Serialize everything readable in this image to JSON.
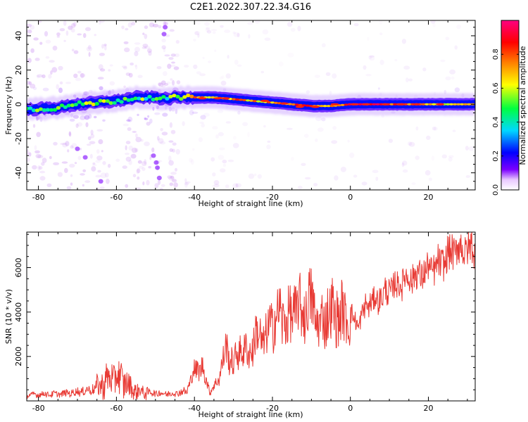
{
  "title": "C2E1.2022.307.22.34.G16",
  "colors": {
    "snr_line": "#e83a34",
    "frame": "#000000",
    "halo": "#c07cf0",
    "colormap": [
      "#ffffff",
      "#7b00ff",
      "#0000ff",
      "#00d8ff",
      "#00ff40",
      "#ffff00",
      "#ff8000",
      "#ff0000",
      "#ff0080"
    ]
  },
  "chart_data": [
    {
      "type": "heatmap",
      "title": "",
      "xlabel": "Height of straight line (km)",
      "ylabel": "Frequency (Hz)",
      "xlim": [
        -83,
        32
      ],
      "ylim": [
        -50,
        49
      ],
      "xticks": [
        -80,
        -60,
        -40,
        -20,
        0,
        20
      ],
      "yticks": [
        -40,
        -20,
        0,
        20,
        40
      ],
      "grid": false,
      "colorbar": {
        "label": "Normalized spectral amplitude",
        "range": [
          0.0,
          1.0
        ],
        "ticks": [
          0.0,
          0.2,
          0.4,
          0.6,
          0.8
        ],
        "tick_labels": [
          "0.0",
          "0.2",
          "0.4",
          "0.6",
          "0.8"
        ]
      },
      "ridge": {
        "x": [
          -83,
          -75,
          -70,
          -65,
          -60,
          -55,
          -50,
          -47,
          -45,
          -40,
          -35,
          -30,
          -25,
          -20,
          -15,
          -10,
          -5,
          0,
          5,
          10,
          15,
          20,
          25,
          32
        ],
        "frequency": [
          -3,
          -2,
          0,
          1,
          2,
          4,
          4,
          3,
          4,
          4,
          4,
          3,
          2,
          1,
          0,
          -1,
          -1,
          0,
          0,
          0,
          0,
          0,
          0,
          0
        ],
        "amplitude": [
          0.45,
          0.5,
          0.55,
          0.55,
          0.5,
          0.5,
          0.45,
          0.4,
          0.55,
          0.75,
          0.7,
          0.75,
          0.7,
          0.7,
          0.75,
          0.8,
          0.75,
          0.85,
          0.9,
          0.85,
          0.75,
          0.7,
          0.65,
          0.6
        ]
      }
    },
    {
      "type": "line",
      "title": "",
      "xlabel": "Height of straight line (km)",
      "ylabel": "SNR (10 * v/v)",
      "xlim": [
        -83,
        32
      ],
      "ylim": [
        0,
        7600
      ],
      "xticks": [
        -80,
        -60,
        -40,
        -20,
        0,
        20
      ],
      "yticks": [
        2000,
        4000,
        6000
      ],
      "grid": false,
      "series": [
        {
          "x": [
            -83,
            -80,
            -77,
            -74,
            -71,
            -68,
            -65,
            -62,
            -60,
            -58,
            -56,
            -54,
            -52,
            -50,
            -48,
            -46,
            -44,
            -42,
            -40,
            -38,
            -36,
            -34,
            -32,
            -30,
            -28,
            -26,
            -24,
            -22,
            -20,
            -18,
            -16,
            -14,
            -12,
            -10,
            -8,
            -6,
            -4,
            -2,
            0,
            2,
            4,
            6,
            8,
            10,
            12,
            14,
            16,
            18,
            20,
            22,
            24,
            26,
            28,
            30,
            32
          ],
          "values": [
            250,
            300,
            300,
            320,
            380,
            450,
            600,
            950,
            1100,
            900,
            500,
            420,
            380,
            350,
            330,
            320,
            380,
            420,
            1400,
            1500,
            400,
            900,
            2300,
            1700,
            2400,
            2100,
            3000,
            2700,
            3600,
            3900,
            3600,
            4200,
            4000,
            4500,
            3300,
            4000,
            3900,
            3800,
            3900,
            3400,
            4300,
            4500,
            4700,
            5000,
            5200,
            5500,
            5600,
            5700,
            5900,
            6000,
            6300,
            6700,
            6900,
            6800,
            6900
          ]
        }
      ]
    }
  ]
}
